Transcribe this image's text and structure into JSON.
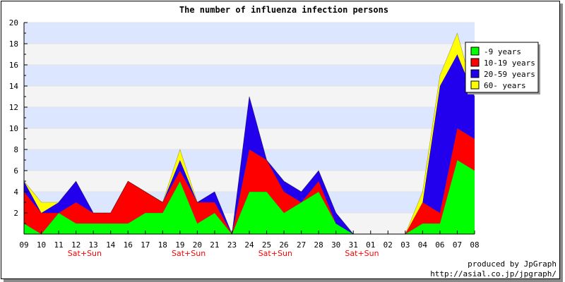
{
  "chart_data": {
    "type": "area",
    "stacked": true,
    "title": "The number of influenza infection persons",
    "categories": [
      "09",
      "10",
      "11",
      "12",
      "13",
      "14",
      "16",
      "17",
      "18",
      "19",
      "20",
      "21",
      "23",
      "24",
      "25",
      "26",
      "27",
      "28",
      "30",
      "31",
      "01",
      "02",
      "03",
      "04",
      "06",
      "07",
      "08"
    ],
    "series": [
      {
        "name": "-9 years",
        "color": "#00ff00",
        "values": [
          1,
          0,
          2,
          1,
          1,
          1,
          1,
          2,
          2,
          5,
          1,
          2,
          0,
          4,
          4,
          2,
          3,
          4,
          1,
          0,
          0,
          0,
          0,
          1,
          1,
          7,
          6
        ]
      },
      {
        "name": "10-19 years",
        "color": "#ff0000",
        "values": [
          3,
          2,
          0,
          2,
          1,
          1,
          4,
          2,
          1,
          1,
          2,
          1,
          0,
          4,
          3,
          2,
          0,
          1,
          0,
          0,
          0,
          0,
          0,
          2,
          1,
          3,
          3
        ]
      },
      {
        "name": "20-59 years",
        "color": "#2200ee",
        "values": [
          1,
          0,
          1,
          2,
          0,
          0,
          0,
          0,
          0,
          1,
          0,
          1,
          0,
          5,
          0,
          1,
          1,
          1,
          1,
          0,
          0,
          0,
          0,
          0,
          12,
          7,
          4
        ]
      },
      {
        "name": "60- years",
        "color": "#ffff00",
        "values": [
          0,
          1,
          0,
          0,
          0,
          0,
          0,
          0,
          0,
          1,
          0,
          0,
          0,
          0,
          0,
          0,
          0,
          0,
          0,
          0,
          0,
          0,
          0,
          1,
          1,
          2,
          0
        ]
      }
    ],
    "ylim": [
      0,
      20
    ],
    "yticks": [
      2,
      4,
      6,
      8,
      10,
      12,
      14,
      16,
      18,
      20
    ],
    "grid": true,
    "legend_position": "top-right",
    "weekend_labels": [
      {
        "after": "12",
        "text": "Sat+Sun"
      },
      {
        "after": "19",
        "text": "Sat+Sun"
      },
      {
        "after": "25",
        "text": "Sat+Sun"
      },
      {
        "after": "31",
        "text": "Sat+Sun"
      }
    ],
    "credit": [
      "produced by JpGraph",
      "http://asial.co.jp/jpgraph/"
    ]
  },
  "colors": {
    "band_light": "#f4f4f4",
    "band_blue": "#dce6ff",
    "weekend_text": "#ff0000",
    "credit_text": "#0000cc"
  }
}
